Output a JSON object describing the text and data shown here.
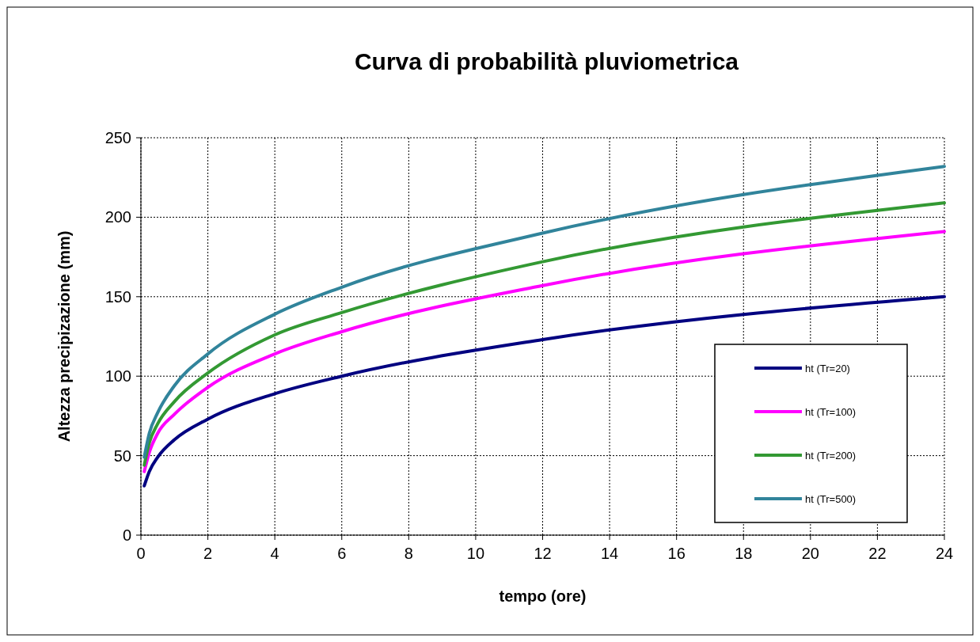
{
  "chart_data": {
    "type": "line",
    "title": "Curva di probabilità pluviometrica",
    "xlabel": "tempo (ore)",
    "ylabel": "Altezza precipizazione (mm)",
    "x": [
      0.1,
      0.25,
      0.5,
      1,
      2,
      4,
      6,
      12,
      24
    ],
    "series": [
      {
        "name": "ht (Tr=20)",
        "color": "#000080",
        "values": [
          31,
          40,
          49,
          60,
          73,
          89,
          100,
          123,
          150
        ]
      },
      {
        "name": "ht (Tr=100)",
        "color": "#ff00ff",
        "values": [
          40,
          52,
          64,
          76,
          93,
          114,
          128,
          157,
          191
        ]
      },
      {
        "name": "ht (Tr=200)",
        "color": "#339933",
        "values": [
          44,
          58,
          70,
          84,
          102,
          126,
          140,
          172,
          209
        ]
      },
      {
        "name": "ht (Tr=500)",
        "color": "#31849b",
        "values": [
          49,
          64,
          77,
          94,
          114,
          139,
          156,
          190,
          232
        ]
      }
    ],
    "xlim": [
      0,
      24
    ],
    "xticks": [
      0,
      2,
      4,
      6,
      8,
      10,
      12,
      14,
      16,
      18,
      20,
      22,
      24
    ],
    "ylim": [
      0,
      250
    ],
    "yticks": [
      0,
      50,
      100,
      150,
      200,
      250
    ],
    "grid": true,
    "legend": "bottom right",
    "marker": "none",
    "line_style": "solid"
  }
}
